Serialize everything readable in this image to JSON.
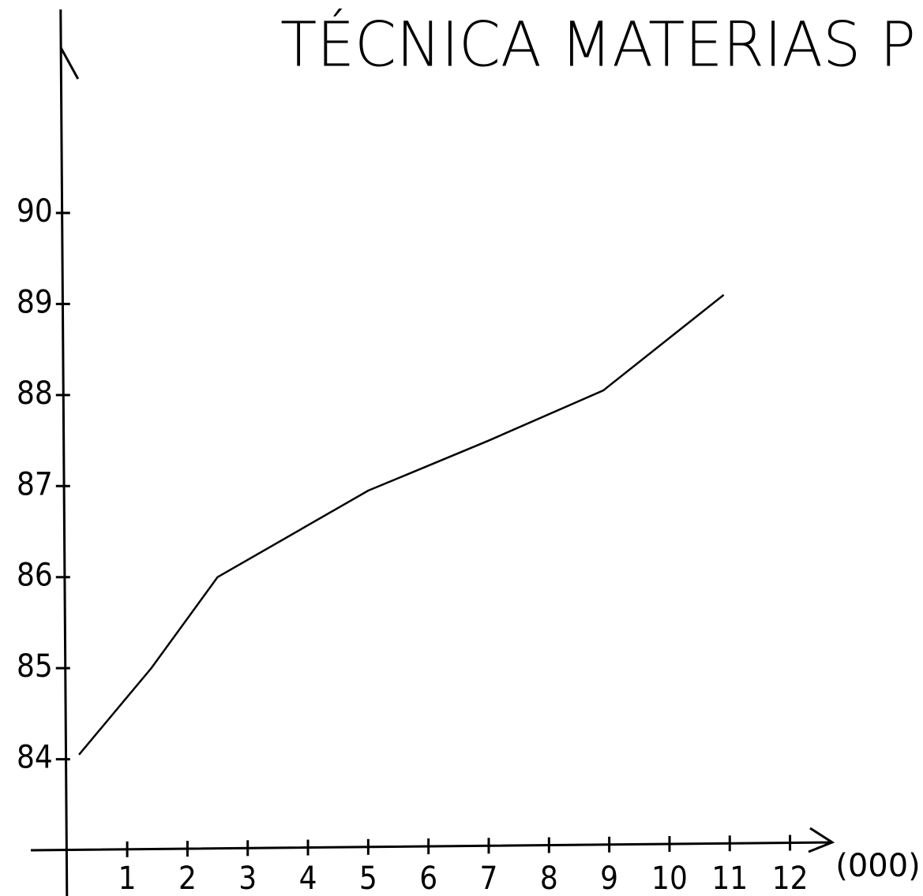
{
  "chart_data": {
    "type": "line",
    "title": "TÉCNICA MATERIAS P",
    "x_label": "(000)",
    "x": [
      0.2,
      1.4,
      2.5,
      5,
      7,
      8.9,
      10.9
    ],
    "values": [
      84.05,
      85,
      86,
      86.95,
      87.5,
      88.05,
      89.1
    ],
    "color": "#000000",
    "xlim": [
      -0.6,
      12.7
    ],
    "xticks": [
      1,
      2,
      3,
      4,
      5,
      6,
      7,
      8,
      9,
      10,
      11,
      12
    ],
    "ylim": [
      83,
      92.2
    ],
    "yticks": [
      84,
      85,
      86,
      87,
      88,
      89,
      90
    ],
    "grid": false
  }
}
